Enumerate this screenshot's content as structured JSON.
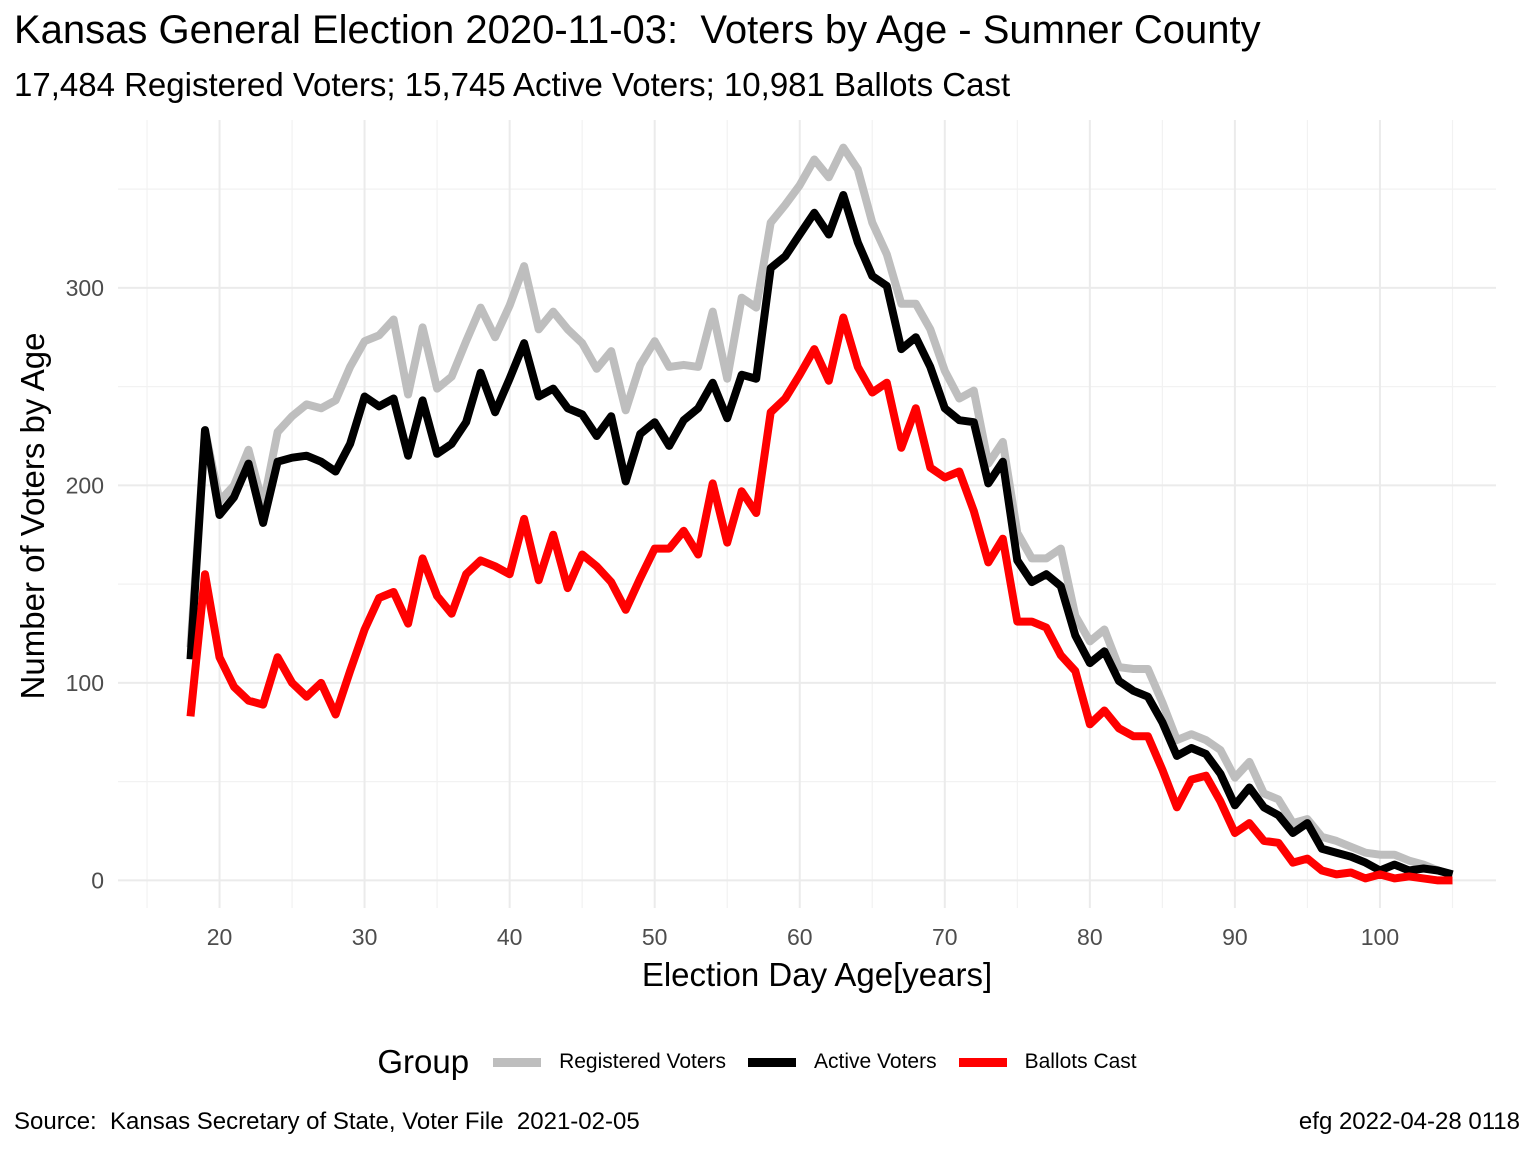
{
  "chart_data": {
    "type": "line",
    "title": "Kansas General Election 2020-11-03:  Voters by Age - Sumner County",
    "subtitle": "17,484 Registered Voters; 15,745 Active Voters; 10,981 Ballots Cast",
    "xlabel": "Election Day Age[years]",
    "ylabel": "Number of Voters by Age",
    "xlim": [
      13,
      108
    ],
    "ylim": [
      -14,
      385
    ],
    "x_ticks": [
      20,
      30,
      40,
      50,
      60,
      70,
      80,
      90,
      100
    ],
    "y_ticks": [
      0,
      100,
      200,
      300
    ],
    "grid": true,
    "legend_title": "Group",
    "legend_position": "bottom",
    "x": [
      18,
      19,
      20,
      21,
      22,
      23,
      24,
      25,
      26,
      27,
      28,
      29,
      30,
      31,
      32,
      33,
      34,
      35,
      36,
      37,
      38,
      39,
      40,
      41,
      42,
      43,
      44,
      45,
      46,
      47,
      48,
      49,
      50,
      51,
      52,
      53,
      54,
      55,
      56,
      57,
      58,
      59,
      60,
      61,
      62,
      63,
      64,
      65,
      66,
      67,
      68,
      69,
      70,
      71,
      72,
      73,
      74,
      75,
      76,
      77,
      78,
      79,
      80,
      81,
      82,
      83,
      84,
      85,
      86,
      87,
      88,
      89,
      90,
      91,
      92,
      93,
      94,
      95,
      96,
      97,
      98,
      99,
      100,
      101,
      102,
      103,
      104,
      105
    ],
    "series": [
      {
        "name": "Registered Voters",
        "color": "#bebebe",
        "values": [
          118,
          228,
          192,
          200,
          218,
          190,
          227,
          235,
          241,
          239,
          243,
          260,
          273,
          276,
          284,
          246,
          280,
          249,
          255,
          273,
          290,
          275,
          291,
          311,
          279,
          288,
          279,
          272,
          259,
          268,
          238,
          261,
          273,
          260,
          261,
          260,
          288,
          254,
          295,
          290,
          333,
          342,
          352,
          365,
          356,
          371,
          360,
          333,
          317,
          292,
          292,
          279,
          258,
          244,
          248,
          211,
          222,
          176,
          163,
          163,
          168,
          134,
          121,
          127,
          108,
          107,
          107,
          90,
          71,
          74,
          71,
          66,
          52,
          60,
          44,
          41,
          29,
          31,
          22,
          20,
          17,
          14,
          13,
          13,
          10,
          8,
          5,
          3
        ]
      },
      {
        "name": "Active Voters",
        "color": "#000000",
        "values": [
          112,
          228,
          185,
          194,
          211,
          181,
          212,
          214,
          215,
          212,
          207,
          221,
          245,
          240,
          244,
          215,
          243,
          216,
          221,
          232,
          257,
          237,
          254,
          272,
          245,
          249,
          239,
          236,
          225,
          235,
          202,
          226,
          232,
          220,
          233,
          239,
          252,
          234,
          256,
          254,
          310,
          316,
          327,
          338,
          327,
          347,
          323,
          306,
          301,
          269,
          275,
          260,
          239,
          233,
          232,
          201,
          212,
          162,
          151,
          155,
          149,
          124,
          110,
          116,
          101,
          96,
          93,
          80,
          63,
          67,
          64,
          54,
          38,
          47,
          37,
          33,
          24,
          29,
          16,
          14,
          12,
          9,
          5,
          8,
          5,
          6,
          5,
          3
        ]
      },
      {
        "name": "Ballots Cast",
        "color": "#ff0000",
        "values": [
          83,
          155,
          113,
          98,
          91,
          89,
          113,
          100,
          93,
          100,
          84,
          106,
          127,
          143,
          146,
          130,
          163,
          144,
          135,
          155,
          162,
          159,
          155,
          183,
          152,
          175,
          148,
          165,
          159,
          151,
          137,
          153,
          168,
          168,
          177,
          165,
          201,
          171,
          197,
          186,
          237,
          244,
          256,
          269,
          253,
          285,
          260,
          247,
          252,
          219,
          239,
          209,
          204,
          207,
          187,
          161,
          173,
          131,
          131,
          128,
          114,
          106,
          79,
          86,
          77,
          73,
          73,
          56,
          37,
          51,
          53,
          40,
          24,
          29,
          20,
          19,
          9,
          11,
          5,
          3,
          4,
          1,
          3,
          1,
          2,
          1,
          0,
          0
        ]
      }
    ]
  },
  "footer": {
    "source": "Source:  Kansas Secretary of State, Voter File  2021-02-05",
    "stamp": "efg 2022-04-28 0118"
  }
}
